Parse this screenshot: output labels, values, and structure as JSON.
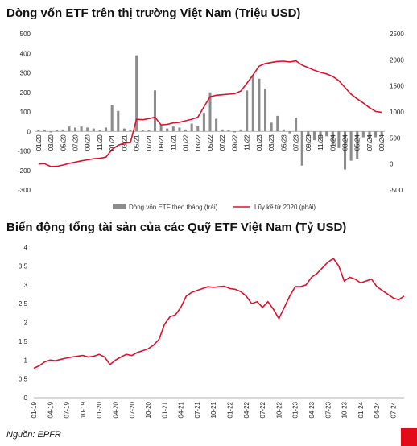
{
  "charts": {
    "title1": "Dòng vốn ETF trên thị trường Việt Nam (Triệu USD)",
    "title2": "Biến động tổng tài sản của các Quỹ ETF Việt Nam (Tỷ USD)"
  },
  "source": "Nguồn: EPFR",
  "colors": {
    "bar": "#8c8c8c",
    "line": "#e0102a",
    "accent": "#e30b17"
  },
  "chart_data": [
    {
      "type": "bar",
      "title": "Dòng vốn ETF trên thị trường Việt Nam (Triệu USD)",
      "categories": [
        "01/20",
        "02/20",
        "03/20",
        "04/20",
        "05/20",
        "06/20",
        "07/20",
        "08/20",
        "09/20",
        "10/20",
        "11/20",
        "12/20",
        "01/21",
        "02/21",
        "03/21",
        "04/21",
        "05/21",
        "06/21",
        "07/21",
        "08/21",
        "09/21",
        "10/21",
        "11/21",
        "12/21",
        "01/22",
        "02/22",
        "03/22",
        "04/22",
        "05/22",
        "06/22",
        "07/22",
        "08/22",
        "09/22",
        "10/22",
        "11/22",
        "12/22",
        "01/23",
        "02/23",
        "03/23",
        "04/23",
        "05/23",
        "06/23",
        "07/23",
        "08/23",
        "09/23",
        "10/23",
        "11/23",
        "12/23",
        "01/24",
        "02/24",
        "03/24",
        "04/24",
        "05/24",
        "06/24",
        "07/24",
        "08/24",
        "09/24"
      ],
      "tick_labels": [
        "01/20",
        "03/20",
        "05/20",
        "07/20",
        "09/20",
        "11/20",
        "01/21",
        "03/21",
        "05/21",
        "07/21",
        "09/21",
        "11/21",
        "01/22",
        "03/22",
        "05/22",
        "07/22",
        "09/22",
        "11/22",
        "01/23",
        "03/23",
        "05/23",
        "07/23",
        "09/23",
        "11/23",
        "01/24",
        "03/24",
        "05/24",
        "07/24",
        "09/24"
      ],
      "series": [
        {
          "name": "Dòng vốn ETF theo tháng (trái)",
          "axis": "left",
          "values": [
            5,
            8,
            -5,
            5,
            10,
            25,
            20,
            25,
            20,
            15,
            5,
            20,
            135,
            105,
            15,
            5,
            390,
            5,
            5,
            210,
            35,
            15,
            25,
            20,
            10,
            40,
            30,
            95,
            200,
            65,
            10,
            5,
            -5,
            10,
            210,
            290,
            270,
            220,
            45,
            80,
            10,
            -10,
            70,
            -175,
            -25,
            -45,
            -40,
            -25,
            -70,
            -85,
            -195,
            -150,
            -140,
            -30,
            -40,
            -30,
            -20
          ]
        },
        {
          "name": "Lũy kế từ 2020 (phải)",
          "axis": "right",
          "type": "line",
          "values": [
            0,
            5,
            -50,
            -45,
            -20,
            10,
            35,
            60,
            80,
            100,
            110,
            130,
            280,
            360,
            400,
            410,
            860,
            850,
            870,
            900,
            750,
            760,
            790,
            800,
            830,
            860,
            900,
            1100,
            1290,
            1320,
            1330,
            1340,
            1350,
            1400,
            1550,
            1710,
            1880,
            1930,
            1950,
            1970,
            1975,
            1960,
            1980,
            1900,
            1850,
            1800,
            1760,
            1730,
            1680,
            1600,
            1470,
            1340,
            1250,
            1170,
            1080,
            1010,
            990
          ]
        }
      ],
      "ylim_left": [
        -300,
        500
      ],
      "yticks_left": [
        -300,
        -200,
        -100,
        0,
        100,
        200,
        300,
        400,
        500
      ],
      "ylim_right": [
        -500,
        2500
      ],
      "yticks_right": [
        -500,
        0,
        500,
        1000,
        1500,
        2000,
        2500
      ],
      "legend": "bottom"
    },
    {
      "type": "line",
      "title": "Biến động tổng tài sản của các Quỹ ETF Việt Nam (Tỷ USD)",
      "x_months": [
        "01-19",
        "02-19",
        "03-19",
        "04-19",
        "05-19",
        "06-19",
        "07-19",
        "08-19",
        "09-19",
        "10-19",
        "11-19",
        "12-19",
        "01-20",
        "02-20",
        "03-20",
        "04-20",
        "05-20",
        "06-20",
        "07-20",
        "08-20",
        "09-20",
        "10-20",
        "11-20",
        "12-20",
        "01-21",
        "02-21",
        "03-21",
        "04-21",
        "05-21",
        "06-21",
        "07-21",
        "08-21",
        "09-21",
        "10-21",
        "11-21",
        "12-21",
        "01-22",
        "02-22",
        "03-22",
        "04-22",
        "05-22",
        "06-22",
        "07-22",
        "08-22",
        "09-22",
        "10-22",
        "11-22",
        "12-22",
        "01-23",
        "02-23",
        "03-23",
        "04-23",
        "05-23",
        "06-23",
        "07-23",
        "08-23",
        "09-23",
        "10-23",
        "11-23",
        "12-23",
        "01-24",
        "02-24",
        "03-24",
        "04-24",
        "05-24",
        "06-24",
        "07-24",
        "08-24",
        "09-24"
      ],
      "tick_labels": [
        "01-19",
        "04-19",
        "07-19",
        "10-19",
        "01-20",
        "04-20",
        "07-20",
        "10-20",
        "01-21",
        "04-21",
        "07-21",
        "10-21",
        "01-22",
        "04-22",
        "07-22",
        "10-22",
        "01-23",
        "04-23",
        "07-23",
        "10-23",
        "01-24",
        "04-24",
        "07-24"
      ],
      "series": [
        {
          "name": "",
          "values": [
            0.78,
            0.85,
            0.95,
            1.0,
            0.98,
            1.02,
            1.05,
            1.08,
            1.1,
            1.12,
            1.08,
            1.1,
            1.15,
            1.08,
            0.88,
            1.0,
            1.08,
            1.15,
            1.12,
            1.2,
            1.25,
            1.3,
            1.4,
            1.55,
            1.95,
            2.15,
            2.2,
            2.4,
            2.7,
            2.8,
            2.85,
            2.9,
            2.95,
            2.93,
            2.95,
            2.96,
            2.9,
            2.88,
            2.82,
            2.7,
            2.5,
            2.55,
            2.4,
            2.55,
            2.35,
            2.1,
            2.4,
            2.7,
            2.95,
            2.95,
            3.0,
            3.2,
            3.3,
            3.45,
            3.6,
            3.7,
            3.5,
            3.1,
            3.2,
            3.15,
            3.05,
            3.1,
            3.15,
            2.95,
            2.85,
            2.75,
            2.65,
            2.6,
            2.7
          ]
        }
      ],
      "ylim": [
        0,
        4
      ],
      "yticks": [
        0,
        0.5,
        1,
        1.5,
        2,
        2.5,
        3,
        3.5,
        4
      ],
      "ytick_labels": [
        "0",
        "0.5",
        "1",
        "1.5",
        "2",
        "2.5",
        "3",
        "3.5",
        "4"
      ]
    }
  ]
}
